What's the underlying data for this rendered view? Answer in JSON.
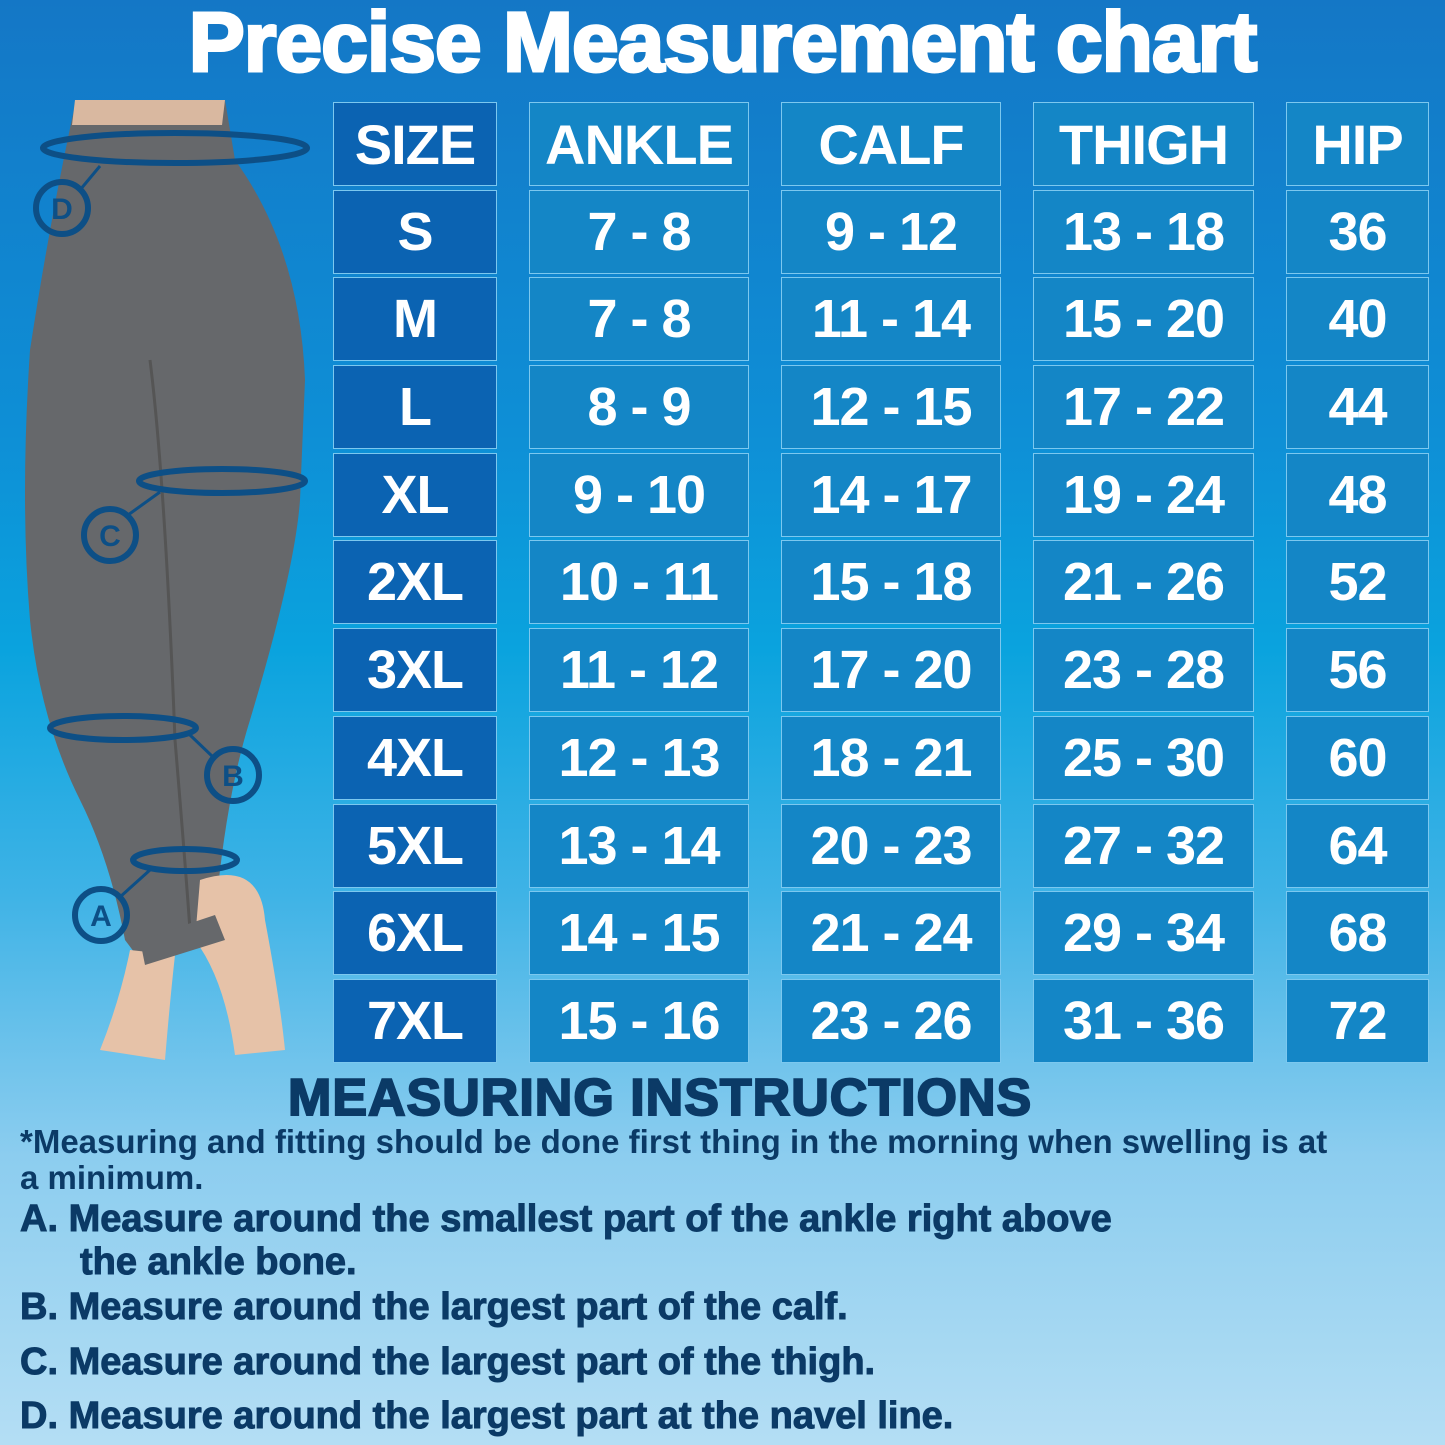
{
  "title": "Precise Measurement chart",
  "colors": {
    "size_cell": "#0b63b2",
    "value_cell": "#1486c6",
    "text_dark": "#0b3a66",
    "legging": "#66686b"
  },
  "markers": [
    "A",
    "B",
    "C",
    "D"
  ],
  "table": {
    "headers": [
      "SIZE",
      "ANKLE",
      "CALF",
      "THIGH",
      "HIP"
    ],
    "rows": [
      [
        "S",
        "7 - 8",
        "9 - 12",
        "13 - 18",
        "36"
      ],
      [
        "M",
        "7 - 8",
        "11 - 14",
        "15 - 20",
        "40"
      ],
      [
        "L",
        "8 - 9",
        "12 - 15",
        "17 - 22",
        "44"
      ],
      [
        "XL",
        "9 - 10",
        "14 - 17",
        "19 - 24",
        "48"
      ],
      [
        "2XL",
        "10 - 11",
        "15 - 18",
        "21 - 26",
        "52"
      ],
      [
        "3XL",
        "11 - 12",
        "17 - 20",
        "23 - 28",
        "56"
      ],
      [
        "4XL",
        "12 - 13",
        "18 - 21",
        "25 - 30",
        "60"
      ],
      [
        "5XL",
        "13 - 14",
        "20 - 23",
        "27 - 32",
        "64"
      ],
      [
        "6XL",
        "14 - 15",
        "21 - 24",
        "29 - 34",
        "68"
      ],
      [
        "7XL",
        "15 - 16",
        "23 - 26",
        "31 - 36",
        "72"
      ]
    ]
  },
  "instructions": {
    "heading": "MEASURING INSTRUCTIONS",
    "note": "*Measuring and fitting should be done first thing in the morning when swelling is at a minimum.",
    "steps": [
      {
        "label": "A.",
        "text": "Measure around the smallest part of the ankle right above",
        "cont": "the ankle bone."
      },
      {
        "label": "B.",
        "text": "Measure around the largest part of the calf."
      },
      {
        "label": "C.",
        "text": "Measure around the largest part of the thigh."
      },
      {
        "label": "D.",
        "text": "Measure around the largest part at the navel line."
      }
    ]
  }
}
